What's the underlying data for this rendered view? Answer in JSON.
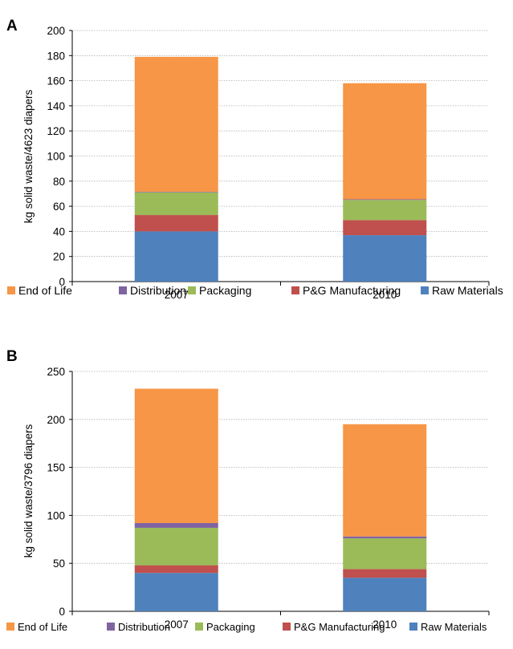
{
  "chart_data": [
    {
      "type": "bar",
      "stacked": true,
      "panel_label": "A",
      "categories": [
        "2007",
        "2010"
      ],
      "ylabel": "kg solid waste/4623 diapers",
      "ylim": [
        0,
        200
      ],
      "yticks": [
        0,
        20,
        40,
        60,
        80,
        100,
        120,
        140,
        160,
        180,
        200
      ],
      "grid": true,
      "legend_position": "bottom",
      "legend": [
        "End of Life",
        "Distribution",
        "Packaging",
        "P&G Manufacturing",
        "Raw Materials"
      ],
      "series": [
        {
          "name": "Raw Materials",
          "color": "#4f81bd",
          "values": [
            40,
            37
          ]
        },
        {
          "name": "P&G Manufacturing",
          "color": "#c0504d",
          "values": [
            13,
            12
          ]
        },
        {
          "name": "Packaging",
          "color": "#9bbb59",
          "values": [
            18,
            16
          ]
        },
        {
          "name": "Distribution",
          "color": "#8064a2",
          "values": [
            0.5,
            0.5
          ]
        },
        {
          "name": "End of Life",
          "color": "#f79646",
          "values": [
            107.5,
            92.5
          ]
        }
      ]
    },
    {
      "type": "bar",
      "stacked": true,
      "panel_label": "B",
      "categories": [
        "2007",
        "2010"
      ],
      "ylabel": "kg solid waste/3796 diapers",
      "ylim": [
        0,
        250
      ],
      "yticks": [
        0,
        50,
        100,
        150,
        200,
        250
      ],
      "grid": true,
      "legend_position": "bottom",
      "legend": [
        "End of Life",
        "Distribution",
        "Packaging",
        "P&G Manufacturing",
        "Raw Materials"
      ],
      "series": [
        {
          "name": "Raw Materials",
          "color": "#4f81bd",
          "values": [
            40,
            35
          ]
        },
        {
          "name": "P&G Manufacturing",
          "color": "#c0504d",
          "values": [
            8,
            9
          ]
        },
        {
          "name": "Packaging",
          "color": "#9bbb59",
          "values": [
            39,
            32
          ]
        },
        {
          "name": "Distribution",
          "color": "#8064a2",
          "values": [
            5,
            2
          ]
        },
        {
          "name": "End of Life",
          "color": "#f79646",
          "values": [
            140,
            117
          ]
        }
      ]
    }
  ]
}
